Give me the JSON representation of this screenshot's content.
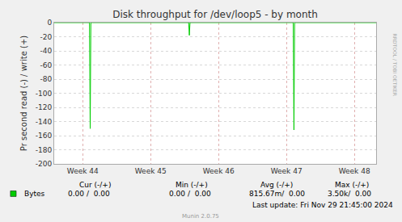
{
  "chart_data": {
    "type": "line",
    "title": "Disk throughput for /dev/loop5 - by month",
    "y_label": "Pr second read (-) / write (+)",
    "x": [
      43.58,
      44.1,
      44.11,
      44.12,
      45.56,
      45.57,
      45.58,
      47.1,
      47.11,
      47.12,
      48.32
    ],
    "series": [
      {
        "name": "Bytes",
        "color": "#00cc00",
        "values": [
          0,
          0,
          -150,
          0,
          0,
          -18,
          0,
          0,
          -152,
          0,
          0
        ],
        "summary": [
          "0.00 /  0.00",
          "0.00 /  0.00",
          "815.67m/  0.00",
          "3.50k/  0.00"
        ]
      }
    ],
    "summary_headers": [
      "Cur (-/+)",
      "Min (-/+)",
      "Avg (-/+)",
      "Max (-/+)"
    ],
    "xlim": [
      43.58,
      48.32
    ],
    "xticks": [
      {
        "value": 44,
        "label": "Week 44"
      },
      {
        "value": 45,
        "label": "Week 45"
      },
      {
        "value": 46,
        "label": "Week 46"
      },
      {
        "value": 47,
        "label": "Week 47"
      },
      {
        "value": 48,
        "label": "Week 48"
      }
    ],
    "ylim": [
      -200,
      0
    ],
    "yticks": [
      -200,
      -180,
      -160,
      -140,
      -120,
      -100,
      -80,
      -60,
      -40,
      -20,
      0
    ],
    "grid": true,
    "annotations": [
      "Last update: Fri Nov 29 21:45:00 2024",
      "Munin 2.0.75",
      "RRDTOOL / TOBI OETIKER"
    ]
  }
}
